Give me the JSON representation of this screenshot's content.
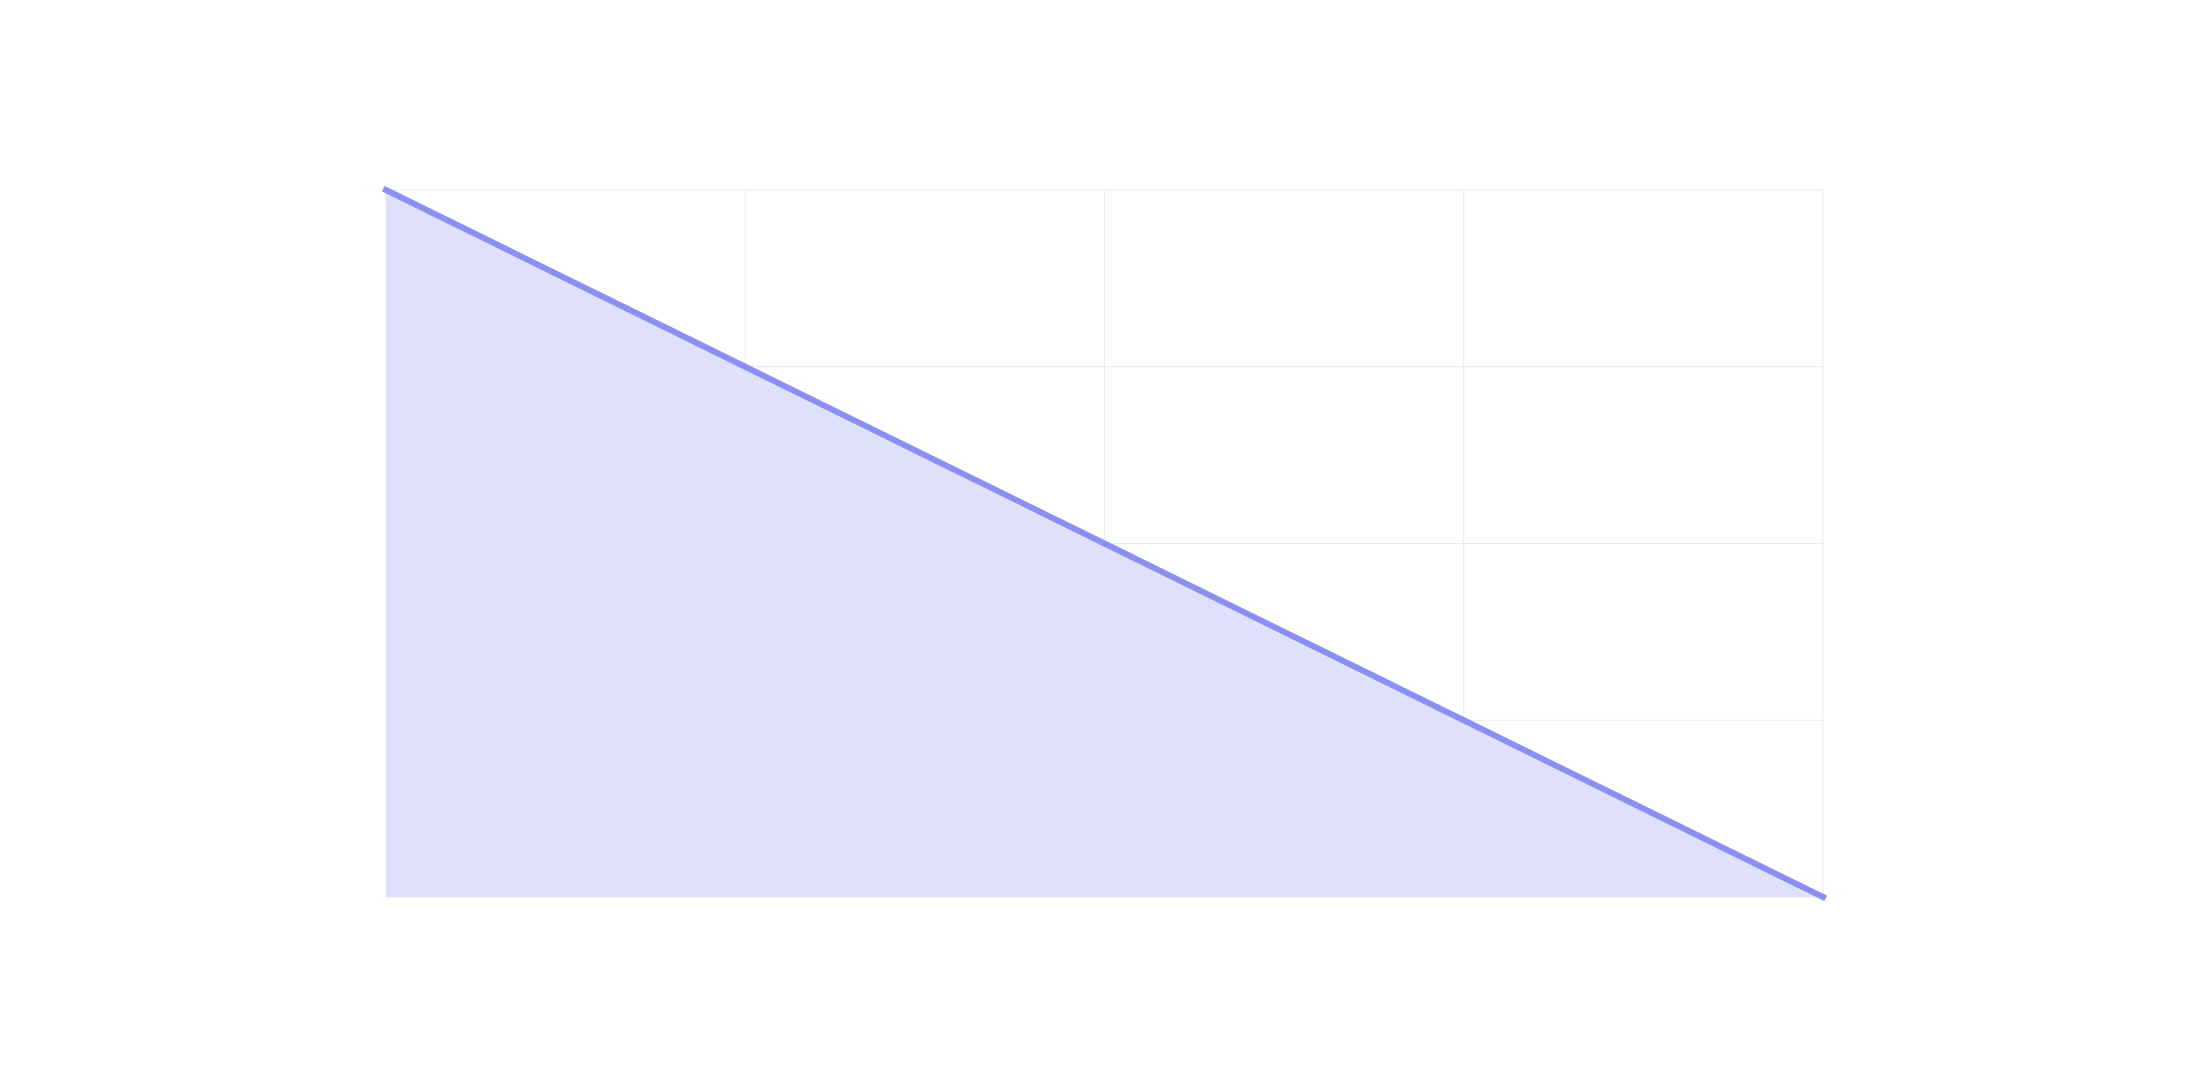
{
  "chart_data": {
    "type": "area",
    "x": [
      0,
      1,
      2,
      3,
      4
    ],
    "series": [
      {
        "values": [
          4,
          3,
          2,
          1,
          0
        ]
      }
    ],
    "xlim": [
      0,
      4
    ],
    "ylim": [
      0,
      4
    ],
    "grid": true,
    "colors": {
      "line": "#8a8ff0",
      "fill": "#dfe0fb",
      "grid": "#ececf7"
    }
  }
}
